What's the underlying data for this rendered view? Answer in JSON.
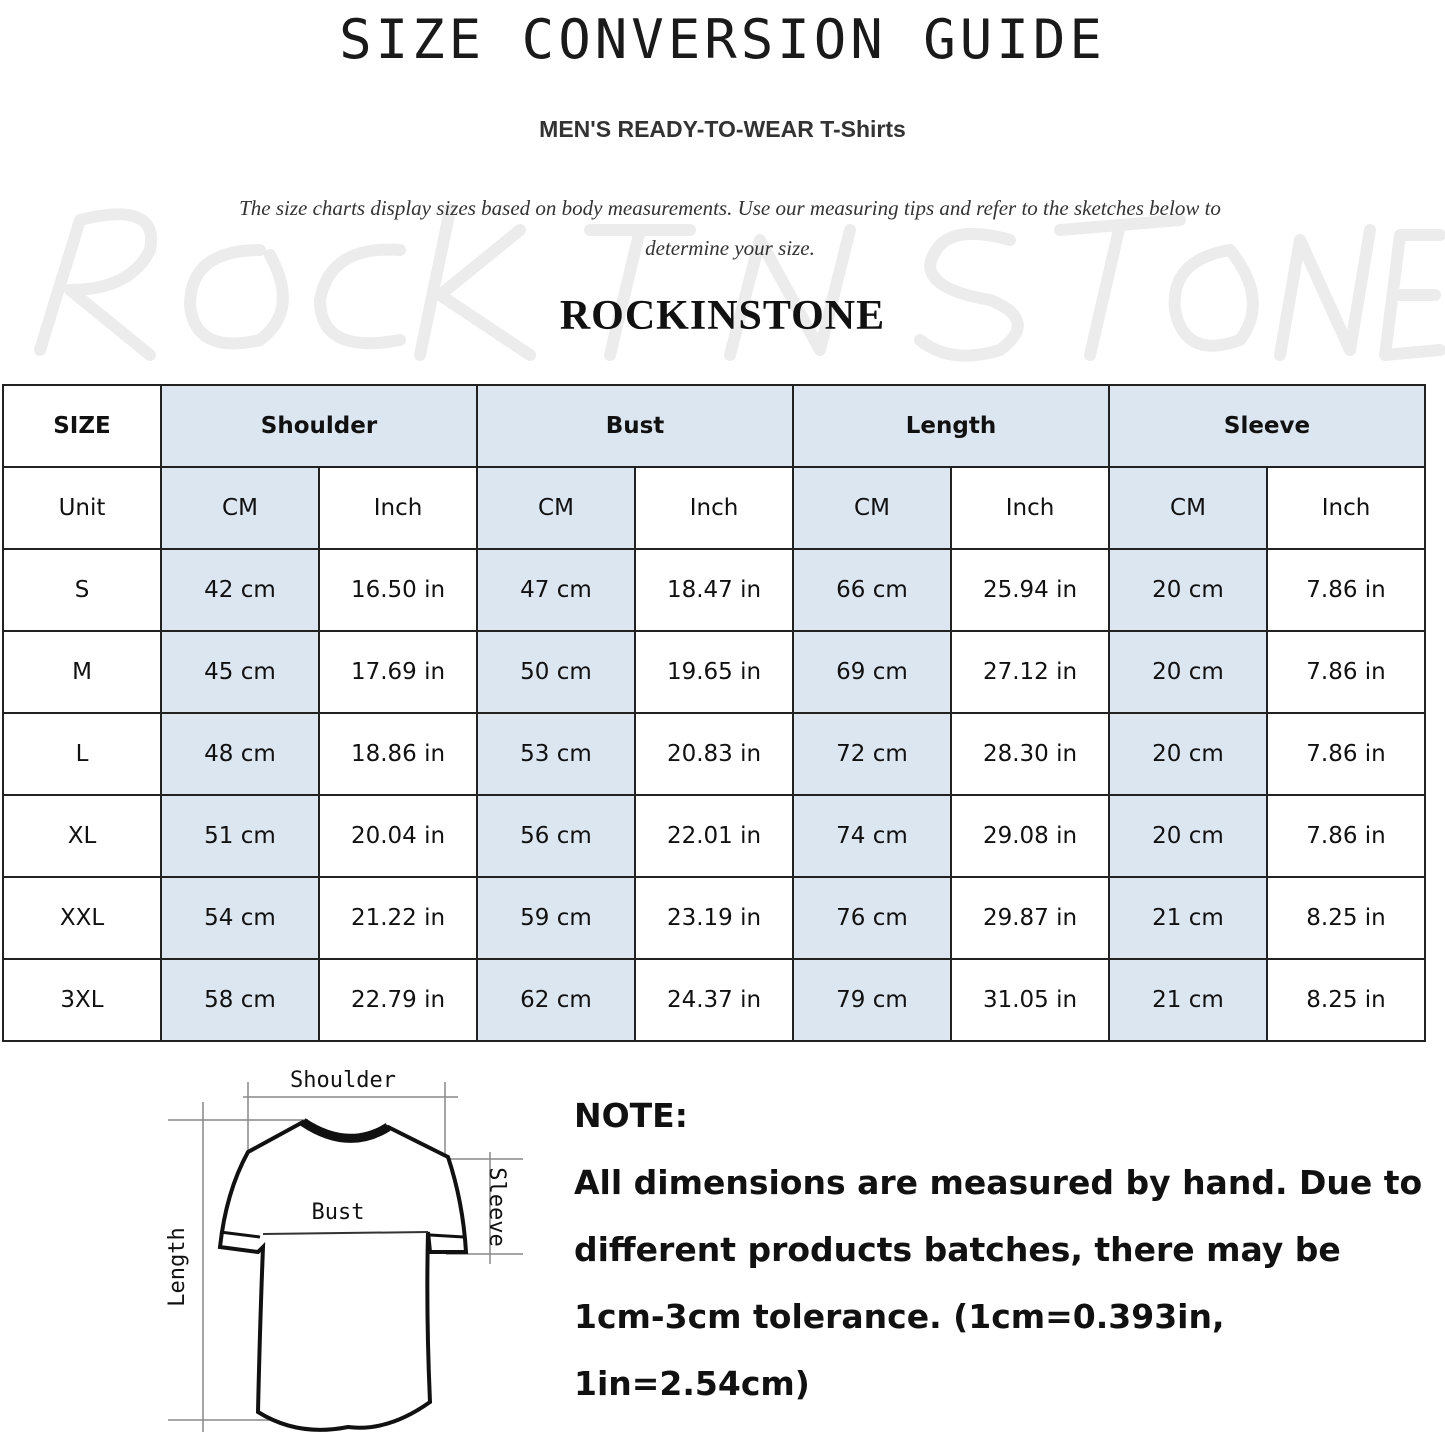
{
  "title": "SIZE CONVERSION GUIDE",
  "subtitle": "MEN'S READY-TO-WEAR T-Shirts",
  "description": "The size charts display sizes based on body measurements. Use our measuring tips and refer to the sketches below to determine your size.",
  "watermark": "ROCK IN STONE",
  "brand": "ROCKINSTONE",
  "colors": {
    "header_fill": "#dce6f1",
    "border": "#222222"
  },
  "table": {
    "size_header": "SIZE",
    "groups": [
      "Shoulder",
      "Bust",
      "Length",
      "Sleeve"
    ],
    "unit_label": "Unit",
    "units": [
      "CM",
      "Inch",
      "CM",
      "Inch",
      "CM",
      "Inch",
      "CM",
      "Inch"
    ],
    "rows": [
      {
        "size": "S",
        "values": [
          "42 cm",
          "16.50 in",
          "47 cm",
          "18.47  in",
          "66 cm",
          "25.94  in",
          "20 cm",
          "7.86  in"
        ]
      },
      {
        "size": "M",
        "values": [
          "45 cm",
          "17.69  in",
          "50 cm",
          "19.65  in",
          "69 cm",
          "27.12  in",
          "20 cm",
          "7.86  in"
        ]
      },
      {
        "size": "L",
        "values": [
          "48 cm",
          "18.86  in",
          "53 cm",
          "20.83  in",
          "72 cm",
          "28.30  in",
          "20 cm",
          "7.86  in"
        ]
      },
      {
        "size": "XL",
        "values": [
          "51 cm",
          "20.04  in",
          "56 cm",
          "22.01  in",
          "74 cm",
          "29.08  in",
          "20 cm",
          "7.86  in"
        ]
      },
      {
        "size": "XXL",
        "values": [
          "54 cm",
          "21.22  in",
          "59 cm",
          "23.19  in",
          "76 cm",
          "29.87  in",
          "21 cm",
          "8.25  in"
        ]
      },
      {
        "size": "3XL",
        "values": [
          "58 cm",
          "22.79  in",
          "62 cm",
          "24.37  in",
          "79 cm",
          "31.05  in",
          "21 cm",
          "8.25  in"
        ]
      }
    ]
  },
  "diagram": {
    "shoulder": "Shoulder",
    "bust": "Bust",
    "length": "Length",
    "sleeve": "Sleeve"
  },
  "note": {
    "heading": "NOTE:",
    "text": "All dimensions are measured by hand. Due to different products batches, there may be 1cm-3cm tolerance. (1cm=0.393in, 1in=2.54cm)"
  }
}
